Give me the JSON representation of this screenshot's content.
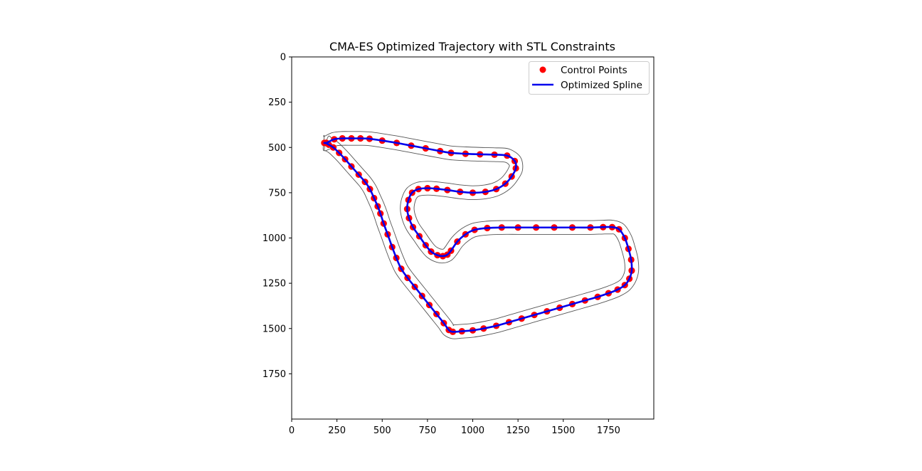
{
  "chart_data": {
    "type": "line",
    "title": "CMA-ES Optimized Trajectory with STL Constraints",
    "xlabel": "",
    "ylabel": "",
    "xlim": [
      0,
      2000
    ],
    "ylim": [
      2000,
      0
    ],
    "y_axis_inverted": true,
    "x_ticks": [
      0,
      250,
      500,
      750,
      1000,
      1250,
      1500,
      1750
    ],
    "y_ticks": [
      0,
      250,
      500,
      750,
      1000,
      1250,
      1500,
      1750
    ],
    "grid": false,
    "legend_position": "upper right",
    "colors": {
      "control_points": "#ff0000",
      "spline": "#0000ee",
      "track_boundary": "#555555",
      "axes": "#000000"
    },
    "legend": [
      {
        "label": "Control Points",
        "marker": "circle",
        "color": "#ff0000"
      },
      {
        "label": "Optimized Spline",
        "marker": "line",
        "color": "#0000ee"
      }
    ],
    "series": [
      {
        "name": "Optimized Spline",
        "closed": true,
        "x": [
          192,
          235,
          280,
          330,
          380,
          430,
          500,
          580,
          660,
          740,
          820,
          880,
          960,
          1040,
          1120,
          1190,
          1232,
          1238,
          1215,
          1180,
          1130,
          1070,
          1000,
          930,
          860,
          800,
          750,
          700,
          665,
          645,
          638,
          648,
          670,
          705,
          740,
          770,
          805,
          835,
          860,
          880,
          915,
          960,
          1010,
          1080,
          1160,
          1250,
          1350,
          1450,
          1550,
          1650,
          1720,
          1770,
          1808,
          1840,
          1860,
          1875,
          1878,
          1865,
          1840,
          1800,
          1750,
          1690,
          1620,
          1550,
          1480,
          1410,
          1340,
          1270,
          1200,
          1130,
          1060,
          1000,
          940,
          890,
          868,
          840,
          800,
          760,
          720,
          680,
          640,
          605,
          578,
          555,
          530,
          508,
          490,
          475,
          455,
          432,
          405,
          370,
          330,
          295,
          262,
          230,
          205,
          188,
          180
        ],
        "y": [
          475,
          455,
          450,
          450,
          450,
          452,
          462,
          475,
          490,
          505,
          520,
          530,
          535,
          538,
          540,
          545,
          575,
          615,
          660,
          700,
          730,
          745,
          750,
          745,
          735,
          728,
          725,
          730,
          750,
          790,
          840,
          890,
          940,
          990,
          1040,
          1075,
          1095,
          1100,
          1092,
          1070,
          1020,
          980,
          955,
          945,
          942,
          942,
          942,
          942,
          942,
          942,
          940,
          940,
          952,
          1000,
          1060,
          1120,
          1180,
          1225,
          1260,
          1285,
          1305,
          1325,
          1345,
          1365,
          1385,
          1405,
          1425,
          1445,
          1465,
          1485,
          1500,
          1510,
          1515,
          1518,
          1508,
          1470,
          1420,
          1370,
          1320,
          1270,
          1220,
          1170,
          1110,
          1050,
          980,
          920,
          865,
          825,
          780,
          730,
          690,
          650,
          605,
          565,
          530,
          500,
          485,
          475,
          475
        ]
      },
      {
        "name": "Control Points",
        "x": [
          192,
          235,
          280,
          330,
          380,
          430,
          500,
          580,
          660,
          740,
          820,
          880,
          960,
          1040,
          1120,
          1190,
          1232,
          1238,
          1215,
          1180,
          1130,
          1070,
          1000,
          930,
          860,
          800,
          750,
          700,
          665,
          645,
          638,
          648,
          670,
          705,
          740,
          770,
          805,
          835,
          860,
          880,
          915,
          960,
          1010,
          1080,
          1160,
          1250,
          1350,
          1450,
          1550,
          1650,
          1720,
          1770,
          1808,
          1840,
          1860,
          1875,
          1878,
          1865,
          1840,
          1800,
          1750,
          1690,
          1620,
          1550,
          1480,
          1410,
          1340,
          1270,
          1200,
          1130,
          1060,
          1000,
          940,
          890,
          868,
          840,
          800,
          760,
          720,
          680,
          640,
          605,
          578,
          555,
          530,
          508,
          490,
          475,
          455,
          432,
          405,
          370,
          330,
          295,
          262,
          230,
          205,
          188,
          180
        ],
        "y": [
          475,
          455,
          450,
          450,
          450,
          452,
          462,
          475,
          490,
          505,
          520,
          530,
          535,
          538,
          540,
          545,
          575,
          615,
          660,
          700,
          730,
          745,
          750,
          745,
          735,
          728,
          725,
          730,
          750,
          790,
          840,
          890,
          940,
          990,
          1040,
          1075,
          1095,
          1100,
          1092,
          1070,
          1020,
          980,
          955,
          945,
          942,
          942,
          942,
          942,
          942,
          942,
          940,
          940,
          952,
          1000,
          1060,
          1120,
          1180,
          1225,
          1260,
          1285,
          1305,
          1325,
          1345,
          1365,
          1385,
          1405,
          1425,
          1445,
          1465,
          1485,
          1500,
          1510,
          1515,
          1518,
          1508,
          1470,
          1420,
          1370,
          1320,
          1270,
          1220,
          1170,
          1110,
          1050,
          980,
          920,
          865,
          825,
          780,
          730,
          690,
          650,
          605,
          565,
          530,
          500,
          485,
          475,
          475
        ]
      }
    ],
    "track_half_width": 38
  }
}
